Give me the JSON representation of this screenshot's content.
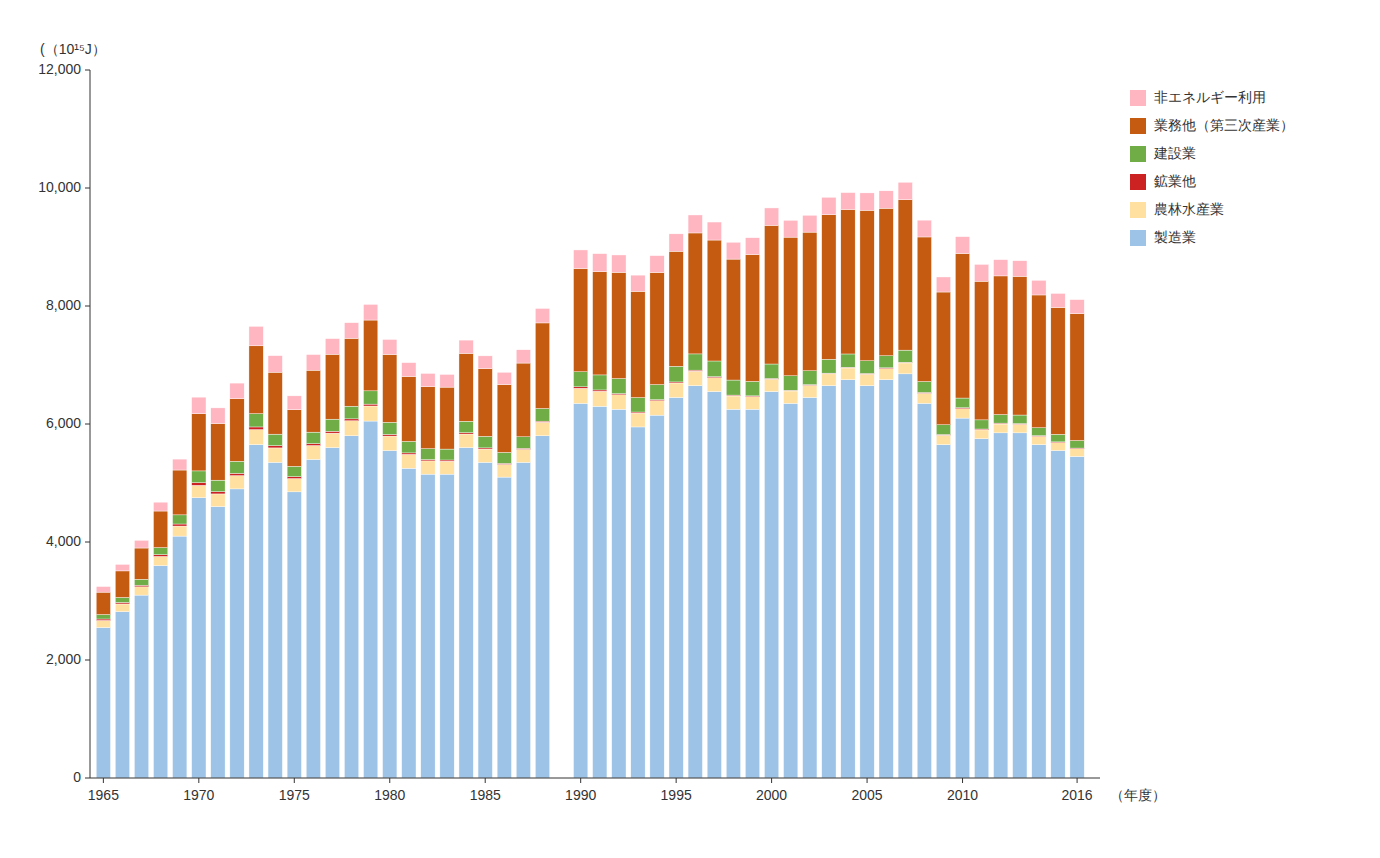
{
  "chart_data": {
    "type": "bar",
    "stacked": true,
    "xlabel": "（年度）",
    "ylabel": "(（10¹⁵J）",
    "x": [
      1965,
      1966,
      1967,
      1968,
      1969,
      1970,
      1971,
      1972,
      1973,
      1974,
      1975,
      1976,
      1977,
      1978,
      1979,
      1980,
      1981,
      1982,
      1983,
      1984,
      1985,
      1986,
      1987,
      1988,
      1990,
      1991,
      1992,
      1993,
      1994,
      1995,
      1996,
      1997,
      1998,
      1999,
      2000,
      2001,
      2002,
      2003,
      2004,
      2005,
      2006,
      2007,
      2008,
      2009,
      2010,
      2011,
      2012,
      2013,
      2014,
      2015,
      2016
    ],
    "series": [
      {
        "name": "製造業",
        "color": "#9DC3E6",
        "values": [
          2550,
          2820,
          3100,
          3600,
          4100,
          4750,
          4600,
          4900,
          5650,
          5350,
          4850,
          5400,
          5600,
          5800,
          6050,
          5550,
          5250,
          5150,
          5150,
          5600,
          5350,
          5100,
          5350,
          5800,
          6350,
          6300,
          6250,
          5950,
          6150,
          6450,
          6650,
          6550,
          6250,
          6250,
          6550,
          6350,
          6450,
          6650,
          6750,
          6650,
          6750,
          6850,
          6350,
          5650,
          6100,
          5750,
          5850,
          5850,
          5650,
          5550,
          5450
        ]
      },
      {
        "name": "農林水産業",
        "color": "#FFE0A0",
        "values": [
          120,
          130,
          140,
          155,
          170,
          210,
          215,
          225,
          255,
          245,
          225,
          235,
          245,
          255,
          255,
          245,
          235,
          225,
          220,
          230,
          225,
          215,
          220,
          230,
          255,
          255,
          245,
          235,
          245,
          245,
          245,
          235,
          225,
          215,
          210,
          210,
          205,
          200,
          200,
          195,
          190,
          185,
          170,
          160,
          160,
          150,
          150,
          145,
          140,
          135,
          130
        ]
      },
      {
        "name": "鉱業他",
        "color": "#CC2222",
        "values": [
          25,
          25,
          28,
          30,
          35,
          45,
          38,
          38,
          45,
          38,
          32,
          32,
          32,
          32,
          32,
          28,
          25,
          22,
          20,
          22,
          20,
          18,
          18,
          18,
          25,
          22,
          20,
          18,
          18,
          18,
          18,
          18,
          15,
          12,
          12,
          12,
          12,
          12,
          12,
          12,
          12,
          12,
          15,
          12,
          15,
          15,
          15,
          12,
          12,
          12,
          12
        ]
      },
      {
        "name": "建設業",
        "color": "#70AD47",
        "values": [
          75,
          85,
          100,
          120,
          155,
          200,
          195,
          205,
          225,
          195,
          175,
          195,
          205,
          215,
          225,
          205,
          195,
          185,
          185,
          195,
          195,
          185,
          195,
          215,
          255,
          255,
          255,
          245,
          255,
          265,
          275,
          265,
          255,
          245,
          245,
          245,
          235,
          235,
          225,
          215,
          205,
          205,
          185,
          165,
          165,
          155,
          145,
          145,
          135,
          128,
          128
        ]
      },
      {
        "name": "業務他（第三次産業）",
        "color": "#C55A11",
        "values": [
          380,
          450,
          530,
          620,
          760,
          970,
          960,
          1060,
          1150,
          1050,
          960,
          1050,
          1100,
          1150,
          1200,
          1150,
          1100,
          1050,
          1050,
          1150,
          1150,
          1150,
          1250,
          1450,
          1750,
          1750,
          1800,
          1800,
          1900,
          1950,
          2050,
          2050,
          2050,
          2150,
          2350,
          2350,
          2350,
          2450,
          2450,
          2550,
          2500,
          2550,
          2450,
          2250,
          2450,
          2350,
          2350,
          2350,
          2250,
          2150,
          2150
        ]
      },
      {
        "name": "非エネルギー利用",
        "color": "#FFB6C1",
        "values": [
          95,
          110,
          130,
          150,
          185,
          280,
          265,
          265,
          330,
          280,
          235,
          265,
          265,
          265,
          265,
          255,
          235,
          225,
          215,
          225,
          215,
          208,
          225,
          245,
          315,
          305,
          295,
          275,
          285,
          295,
          305,
          305,
          285,
          285,
          295,
          285,
          285,
          295,
          285,
          295,
          295,
          295,
          285,
          255,
          285,
          285,
          275,
          265,
          248,
          238,
          238
        ]
      }
    ],
    "xlim": [
      1964.3,
      2017.2
    ],
    "xticks": [
      1965,
      1970,
      1975,
      1980,
      1985,
      1990,
      1995,
      2000,
      2005,
      2010,
      2016
    ],
    "ylim": [
      0,
      12000
    ],
    "yticks": [
      0,
      {
        "value": 2000,
        "label": "2,000"
      },
      {
        "value": 4000,
        "label": "4,000"
      },
      {
        "value": 6000,
        "label": "6,000"
      },
      {
        "value": 8000,
        "label": "8,000"
      },
      {
        "value": 10000,
        "label": "10,000"
      },
      {
        "value": 12000,
        "label": "12,000"
      }
    ],
    "grid": false,
    "legend": "upper right"
  }
}
